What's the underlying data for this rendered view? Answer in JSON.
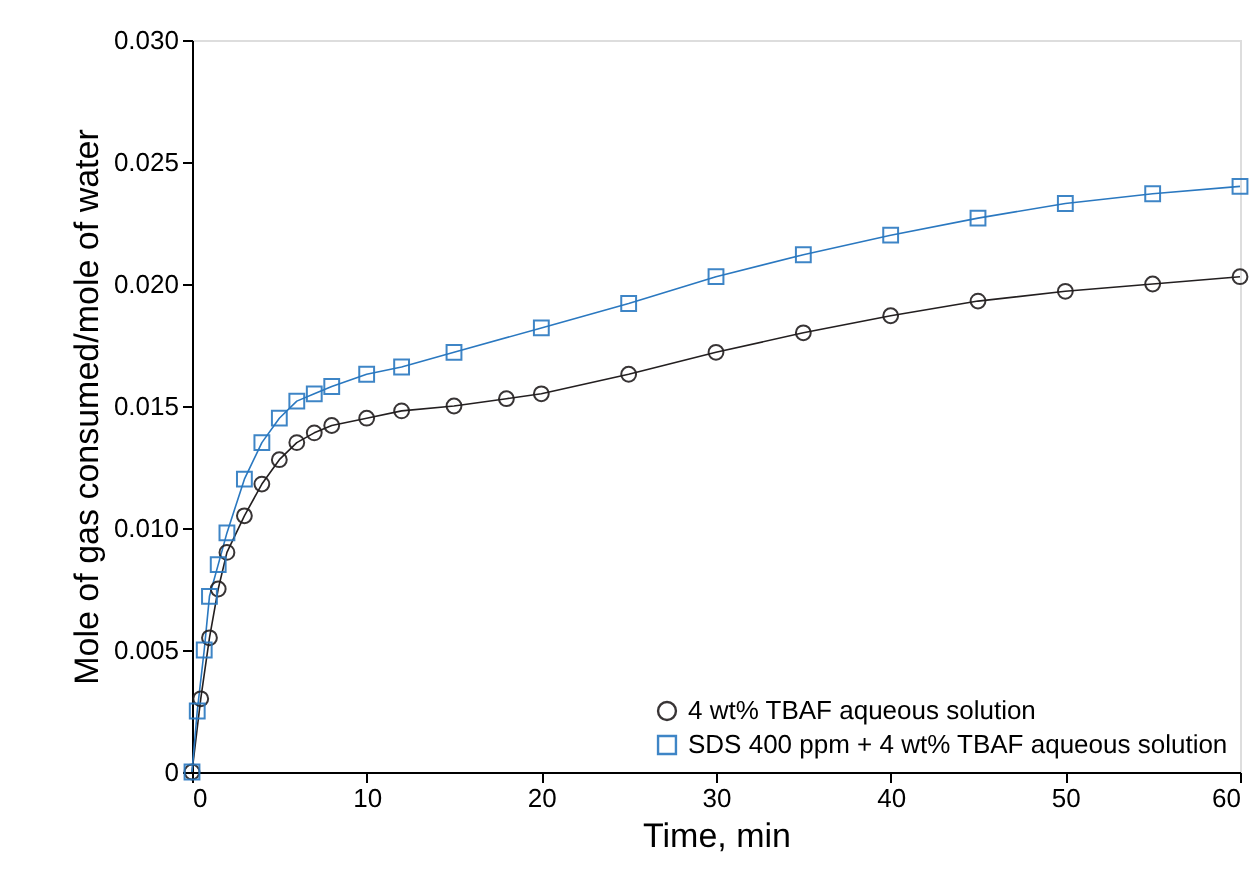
{
  "chart_data": {
    "type": "line",
    "xlabel": "Time, min",
    "ylabel": "Mole of gas consumed/mole of water",
    "xlim": [
      0,
      60
    ],
    "xticks": [
      0,
      10,
      20,
      30,
      40,
      50,
      60
    ],
    "ylim": [
      0,
      0.03
    ],
    "yticks": [
      {
        "value": 0,
        "label": "0"
      },
      0.005,
      {
        "value": 0.01,
        "label": "0.010"
      },
      0.015,
      {
        "value": 0.02,
        "label": "0.020"
      },
      0.025,
      {
        "value": 0.03,
        "label": "0.030"
      }
    ],
    "grid": false,
    "legend": "bottom right",
    "line_style": "solid",
    "series": [
      {
        "name": "4 wt% TBAF aqueous solution",
        "color": "#231f20",
        "marker": "circle",
        "x": [
          0,
          0.5,
          1,
          1.5,
          2,
          3,
          4,
          5,
          6,
          7,
          8,
          10,
          12,
          15,
          18,
          20,
          25,
          30,
          35,
          40,
          45,
          50,
          55,
          60
        ],
        "values": [
          0,
          0.003,
          0.0055,
          0.0075,
          0.009,
          0.0105,
          0.0118,
          0.0128,
          0.0135,
          0.0139,
          0.0142,
          0.0145,
          0.0148,
          0.015,
          0.0153,
          0.0155,
          0.0163,
          0.0172,
          0.018,
          0.0187,
          0.0193,
          0.0197,
          0.02,
          0.0203
        ]
      },
      {
        "name": "SDS 400 ppm + 4 wt% TBAF aqueous solution",
        "color": "#2a78c0",
        "marker": "square",
        "x": [
          0,
          0.3,
          0.7,
          1,
          1.5,
          2,
          3,
          4,
          5,
          6,
          7,
          8,
          10,
          12,
          15,
          20,
          25,
          30,
          35,
          40,
          45,
          50,
          55,
          60
        ],
        "values": [
          0,
          0.0025,
          0.005,
          0.0072,
          0.0085,
          0.0098,
          0.012,
          0.0135,
          0.0145,
          0.0152,
          0.0155,
          0.0158,
          0.0163,
          0.0166,
          0.0172,
          0.0182,
          0.0192,
          0.0203,
          0.0212,
          0.022,
          0.0227,
          0.0233,
          0.0237,
          0.024
        ]
      }
    ]
  }
}
